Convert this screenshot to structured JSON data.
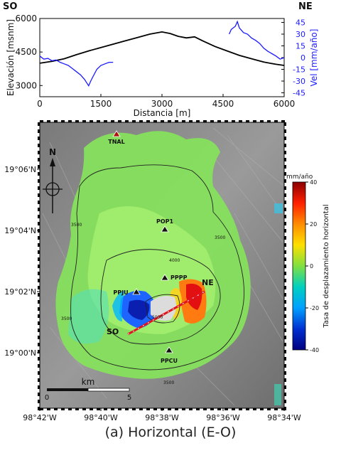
{
  "profile": {
    "left_label": "SO",
    "right_label": "NE",
    "y_left_label": "Elevación [msnm]",
    "y_right_label": "Vel [mm/año]",
    "x_label": "Distancia [m]",
    "y_left_ticks": [
      "3000",
      "4500",
      "6000"
    ],
    "y_right_ticks": [
      "45",
      "30",
      "15",
      "0",
      "-15",
      "-30",
      "-45"
    ],
    "x_ticks": [
      "0",
      "1500",
      "3000",
      "4500",
      "6000"
    ]
  },
  "map": {
    "lat_ticks": [
      "19°06'N",
      "19°04'N",
      "19°02'N",
      "19°00'N"
    ],
    "lon_ticks": [
      "98°42'W",
      "98°40'W",
      "98°38'W",
      "98°36'W",
      "98°34'W"
    ],
    "stations": [
      "TNAL",
      "POP1",
      "PPPP",
      "PPJU",
      "PPCU"
    ],
    "contours": [
      "3500",
      "4000",
      "3500",
      "3500",
      "5000",
      "3500"
    ],
    "north_label": "N",
    "scale_label": "km",
    "scale_start": "0",
    "scale_end": "5",
    "section_left": "SO",
    "section_right": "NE"
  },
  "colorbar": {
    "unit": "mm/año",
    "title": "Tasa de desplazamiento horizontal",
    "ticks": [
      "40",
      "20",
      "0",
      "-20",
      "-40"
    ],
    "colors": [
      "#8b0000",
      "#ff2000",
      "#ff8c00",
      "#ffe000",
      "#80e040",
      "#00d0c0",
      "#00a0ff",
      "#0030d0",
      "#000080"
    ]
  },
  "caption": "(a) Horizontal (E-O)",
  "chart_data": [
    {
      "type": "line",
      "xlabel": "Distancia [m]",
      "ylabel": "Elevación [msnm]",
      "xlim": [
        0,
        6000
      ],
      "ylim": [
        2500,
        6000
      ],
      "series": [
        {
          "x": [
            0,
            300,
            600,
            900,
            1200,
            1500,
            1800,
            2100,
            2400,
            2700,
            3000,
            3200,
            3400,
            3600,
            3800,
            4000,
            4300,
            4600,
            4900,
            5200,
            5500,
            5800,
            6000
          ],
          "values": [
            4000,
            4080,
            4200,
            4380,
            4550,
            4700,
            4850,
            5000,
            5150,
            5300,
            5400,
            5330,
            5200,
            5130,
            5180,
            5000,
            4750,
            4550,
            4350,
            4200,
            4050,
            3950,
            3900
          ]
        }
      ]
    },
    {
      "type": "line",
      "xlabel": "Distancia [m]",
      "ylabel": "Vel [mm/año]",
      "xlim": [
        0,
        6000
      ],
      "ylim": [
        -50,
        50
      ],
      "series": [
        {
          "x": [
            0,
            100,
            200,
            300,
            400,
            500,
            600,
            700,
            800,
            900,
            1000,
            1100,
            1150,
            1200,
            1250,
            1300,
            1400,
            1500,
            1600,
            1700,
            1800
          ],
          "values": [
            2,
            -2,
            -1,
            -4,
            -3,
            -6,
            -8,
            -10,
            -14,
            -18,
            -22,
            -28,
            -32,
            -36,
            -30,
            -25,
            -15,
            -10,
            -8,
            -6,
            -6
          ]
        },
        {
          "x": [
            4650,
            4700,
            4800,
            4850,
            4900,
            5000,
            5100,
            5200,
            5300,
            5400,
            5500,
            5600,
            5700,
            5800,
            5900,
            6000
          ],
          "values": [
            30,
            36,
            40,
            46,
            38,
            32,
            30,
            25,
            22,
            18,
            12,
            8,
            5,
            2,
            -2,
            0
          ]
        }
      ]
    }
  ]
}
